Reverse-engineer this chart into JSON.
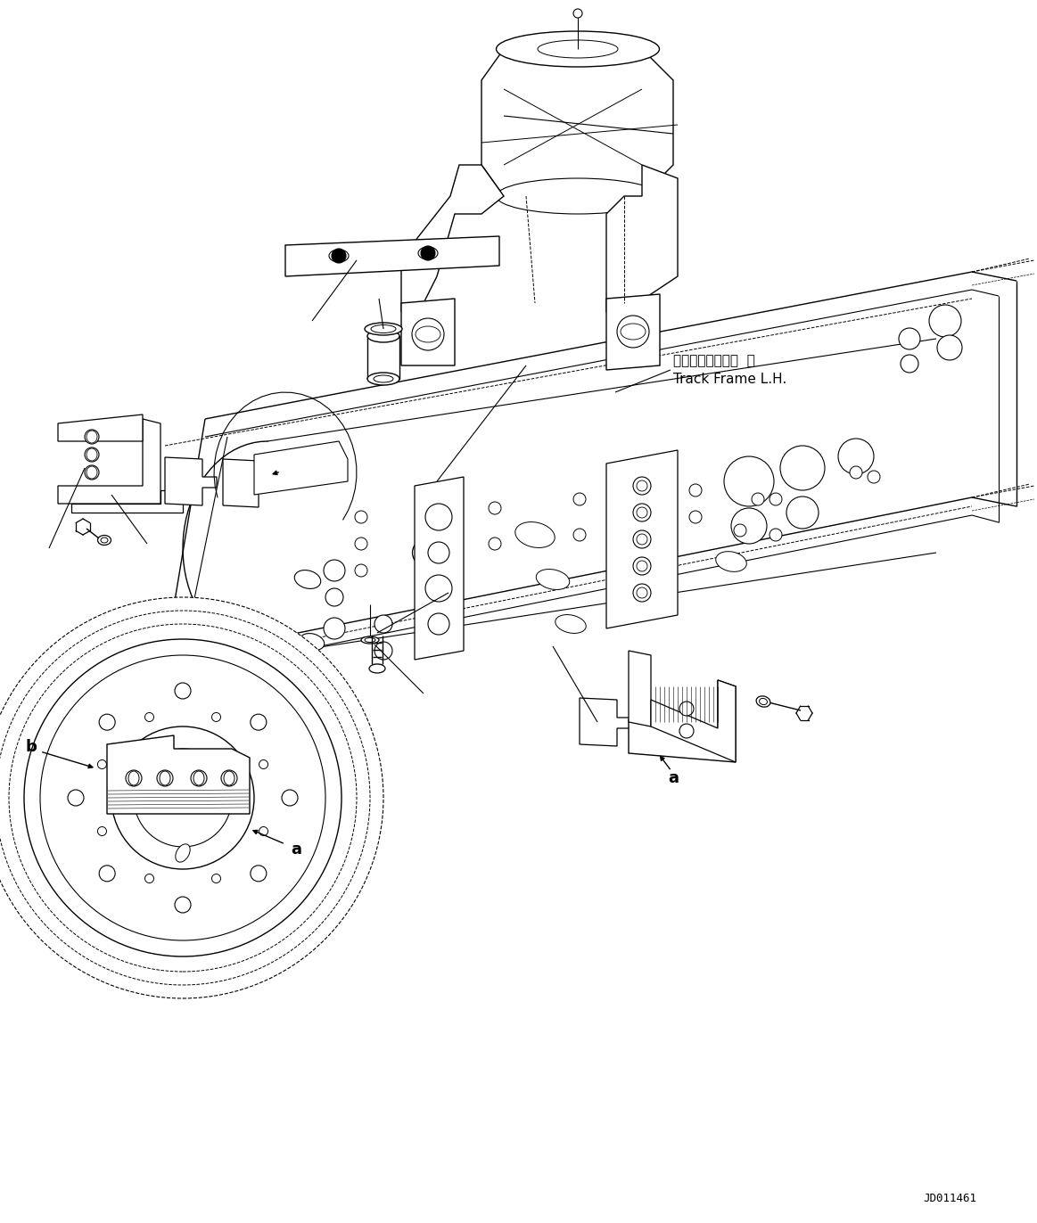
{
  "background_color": "#ffffff",
  "line_color": "#000000",
  "fig_width": 11.63,
  "fig_height": 13.72,
  "dpi": 100,
  "track_frame_jp": "トラックフレーム  左",
  "track_frame_en": "Track Frame L.H.",
  "doc_number": "JD011461",
  "label_a": "a",
  "label_b": "b"
}
